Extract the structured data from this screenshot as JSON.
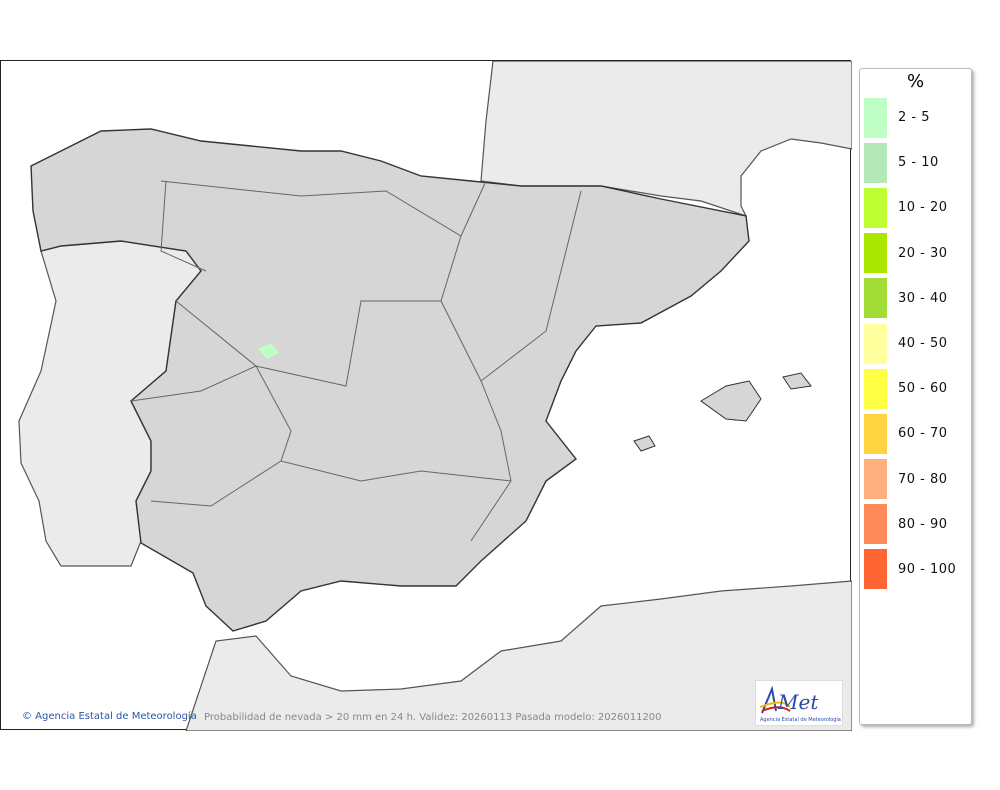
{
  "legend": {
    "unit": "%",
    "items": [
      {
        "label": "2 - 5",
        "color": "#bfffc6"
      },
      {
        "label": "5 - 10",
        "color": "#b5e8b7"
      },
      {
        "label": "10 - 20",
        "color": "#bdff33"
      },
      {
        "label": "20 - 30",
        "color": "#aae600"
      },
      {
        "label": "30 - 40",
        "color": "#a2dc37"
      },
      {
        "label": "40 - 50",
        "color": "#ffff9e"
      },
      {
        "label": "50 - 60",
        "color": "#ffff44"
      },
      {
        "label": "60 - 70",
        "color": "#ffd440"
      },
      {
        "label": "70 - 80",
        "color": "#ffae80"
      },
      {
        "label": "80 - 90",
        "color": "#ff8a5a"
      },
      {
        "label": "90 - 100",
        "color": "#ff6633"
      }
    ]
  },
  "credit": "© Agencia Estatal de Meteorología",
  "caption": "Probabilidad de nevada > 20 mm en 24 h. Validez: 20260113 Pasada modelo: 2026011200",
  "logo": {
    "text": "AEMet",
    "subtext": "Agencia Estatal de Meteorología"
  }
}
